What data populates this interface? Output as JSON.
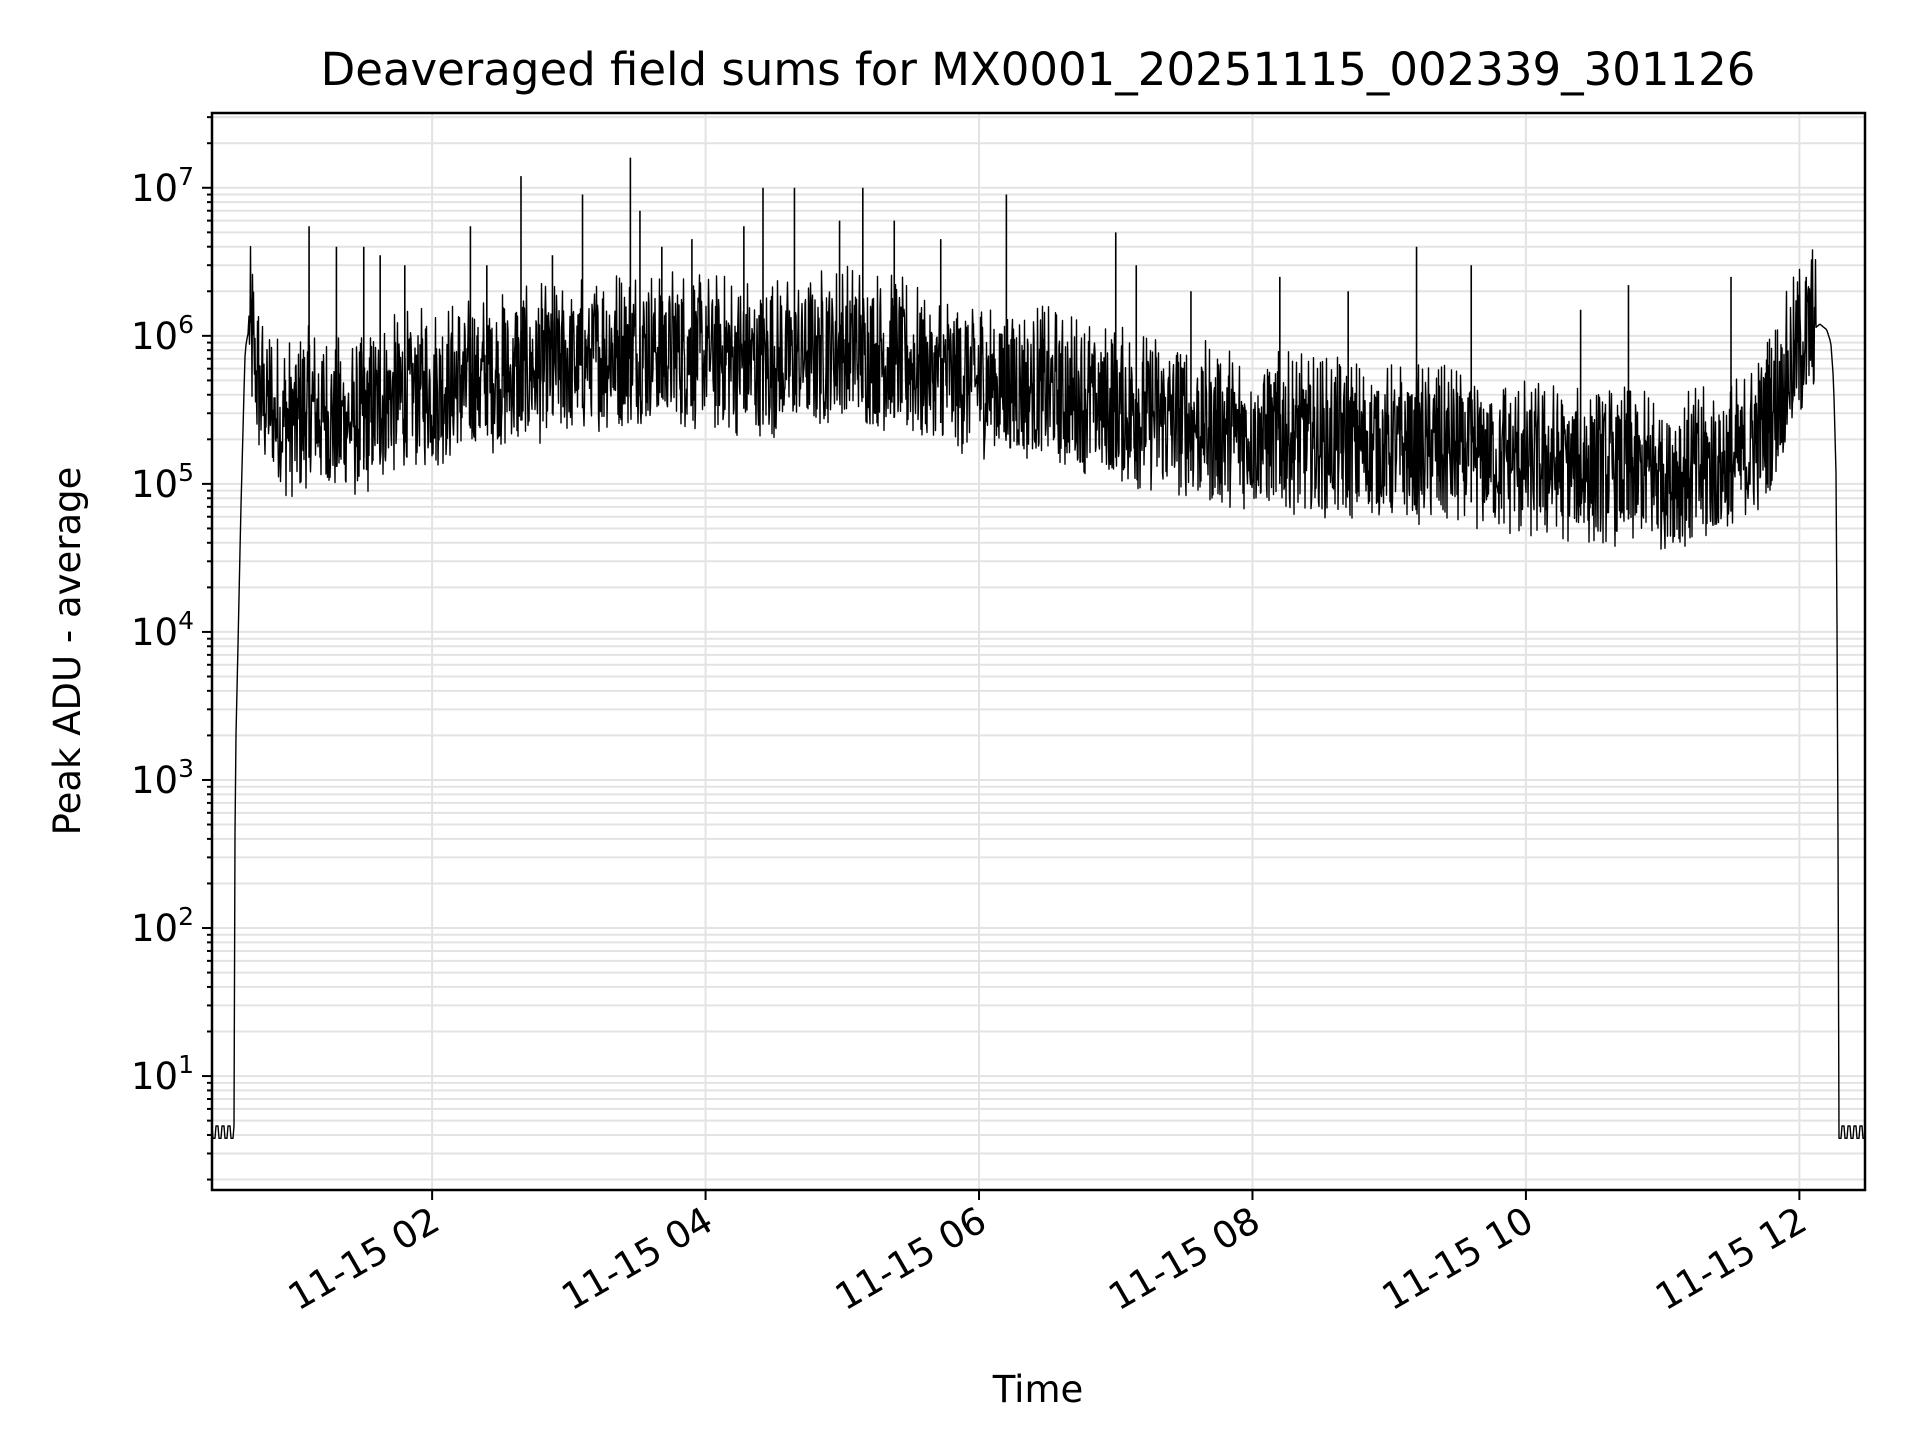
{
  "chart_data": {
    "type": "line",
    "title": "Deaveraged field sums for MX0001_20251115_002339_301126",
    "xlabel": "Time",
    "ylabel": "Peak ADU - average",
    "yscale": "log",
    "ylim": [
      1.7,
      32000000.0
    ],
    "xlim_hours": [
      0.39,
      12.48
    ],
    "grid": true,
    "y_ticks": [
      {
        "value": 10,
        "base": "10",
        "exp": "1"
      },
      {
        "value": 100,
        "base": "10",
        "exp": "2"
      },
      {
        "value": 1000,
        "base": "10",
        "exp": "3"
      },
      {
        "value": 10000,
        "base": "10",
        "exp": "4"
      },
      {
        "value": 100000,
        "base": "10",
        "exp": "5"
      },
      {
        "value": 1000000,
        "base": "10",
        "exp": "6"
      },
      {
        "value": 10000000,
        "base": "10",
        "exp": "7"
      }
    ],
    "x_ticks": [
      {
        "hour": 2,
        "label": "11-15 02"
      },
      {
        "hour": 4,
        "label": "11-15 04"
      },
      {
        "hour": 6,
        "label": "11-15 06"
      },
      {
        "hour": 8,
        "label": "11-15 08"
      },
      {
        "hour": 10,
        "label": "11-15 10"
      },
      {
        "hour": 12,
        "label": "11-15 12"
      }
    ],
    "series": [
      {
        "name": "deaveraged field sum",
        "color": "#000000",
        "x_hours": [
          0.39,
          0.55,
          0.56,
          0.58,
          0.6,
          0.62,
          0.63,
          0.64,
          0.66,
          0.68,
          0.7,
          0.75,
          0.82,
          0.9,
          1.0,
          1.1,
          1.2,
          1.3,
          1.4,
          1.5,
          1.6,
          1.7,
          1.8,
          1.9,
          2.0,
          2.1,
          2.2,
          2.3,
          2.4,
          2.5,
          2.6,
          2.7,
          2.8,
          2.9,
          3.0,
          3.1,
          3.2,
          3.3,
          3.4,
          3.5,
          3.6,
          3.7,
          3.8,
          3.9,
          4.0,
          4.1,
          4.2,
          4.3,
          4.4,
          4.5,
          4.6,
          4.7,
          4.8,
          4.9,
          5.0,
          5.1,
          5.2,
          5.3,
          5.4,
          5.5,
          5.6,
          5.7,
          5.8,
          5.9,
          6.0,
          6.1,
          6.2,
          6.3,
          6.4,
          6.5,
          6.6,
          6.7,
          6.8,
          6.9,
          7.0,
          7.1,
          7.2,
          7.3,
          7.4,
          7.5,
          7.6,
          7.7,
          7.8,
          7.9,
          8.0,
          8.1,
          8.2,
          8.3,
          8.4,
          8.5,
          8.6,
          8.7,
          8.8,
          8.9,
          9.0,
          9.1,
          9.2,
          9.3,
          9.4,
          9.5,
          9.6,
          9.7,
          9.8,
          9.9,
          10.0,
          10.1,
          10.2,
          10.3,
          10.4,
          10.5,
          10.6,
          10.7,
          10.8,
          10.9,
          11.0,
          11.1,
          11.2,
          11.3,
          11.4,
          11.5,
          11.6,
          11.7,
          11.8,
          11.9,
          12.0,
          12.1,
          12.15,
          12.2,
          12.23,
          12.25,
          12.27,
          12.28,
          12.29,
          12.31,
          12.48
        ],
        "y": [
          4,
          4,
          1200,
          8000,
          60000,
          300000,
          700000,
          900000,
          1100000,
          900000,
          600000,
          400000,
          300000,
          250000,
          250000,
          300000,
          280000,
          260000,
          240000,
          250000,
          300000,
          350000,
          380000,
          400000,
          400000,
          420000,
          450000,
          480000,
          500000,
          500000,
          520000,
          550000,
          580000,
          600000,
          620000,
          650000,
          700000,
          720000,
          760000,
          780000,
          780000,
          760000,
          740000,
          720000,
          700000,
          680000,
          660000,
          640000,
          620000,
          640000,
          660000,
          700000,
          740000,
          780000,
          800000,
          780000,
          740000,
          700000,
          650000,
          600000,
          560000,
          520000,
          500000,
          480000,
          460000,
          450000,
          440000,
          430000,
          420000,
          400000,
          380000,
          360000,
          340000,
          320000,
          300000,
          290000,
          280000,
          270000,
          260000,
          250000,
          240000,
          230000,
          220000,
          210000,
          200000,
          200000,
          200000,
          195000,
          190000,
          185000,
          180000,
          180000,
          175000,
          170000,
          168000,
          166000,
          164000,
          162000,
          160000,
          155000,
          150000,
          145000,
          140000,
          135000,
          130000,
          128000,
          126000,
          124000,
          122000,
          120000,
          118000,
          116000,
          114000,
          112000,
          110000,
          110000,
          112000,
          115000,
          120000,
          130000,
          150000,
          200000,
          300000,
          500000,
          800000,
          1100000,
          1200000,
          1100000,
          900000,
          500000,
          100000,
          1500,
          8,
          4,
          4
        ]
      }
    ],
    "spike_peaks_hours": [
      [
        1.1,
        5500000
      ],
      [
        1.3,
        4000000
      ],
      [
        1.5,
        4000000
      ],
      [
        1.62,
        3500000
      ],
      [
        1.8,
        3000000
      ],
      [
        2.28,
        5500000
      ],
      [
        2.4,
        3000000
      ],
      [
        2.65,
        12000000
      ],
      [
        2.88,
        3500000
      ],
      [
        3.1,
        9000000
      ],
      [
        3.45,
        16000000
      ],
      [
        3.52,
        7000000
      ],
      [
        3.68,
        4000000
      ],
      [
        3.9,
        4500000
      ],
      [
        4.28,
        5500000
      ],
      [
        4.42,
        10000000
      ],
      [
        4.65,
        10000000
      ],
      [
        4.98,
        6000000
      ],
      [
        5.15,
        10000000
      ],
      [
        5.38,
        6000000
      ],
      [
        5.72,
        4500000
      ],
      [
        6.2,
        9000000
      ],
      [
        7.0,
        5000000
      ],
      [
        7.15,
        3000000
      ],
      [
        7.55,
        2000000
      ],
      [
        8.2,
        2500000
      ],
      [
        8.7,
        2000000
      ],
      [
        9.2,
        4000000
      ],
      [
        9.6,
        3000000
      ],
      [
        10.4,
        1500000
      ],
      [
        10.75,
        2200000
      ],
      [
        11.5,
        2500000
      ],
      [
        12.05,
        2500000
      ]
    ]
  }
}
